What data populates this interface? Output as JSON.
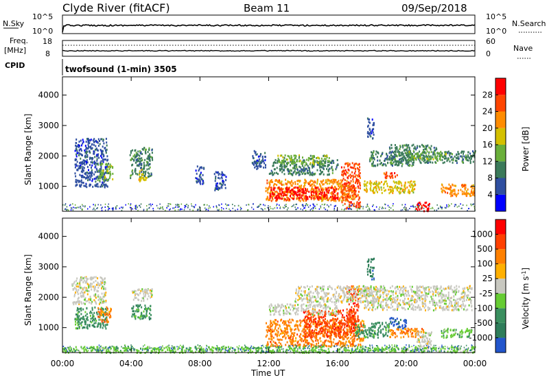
{
  "header": {
    "station": "Clyde River (fitACF)",
    "beam": "Beam 11",
    "date": "09/Sep/2018"
  },
  "noise_panel": {
    "left_label": "N.Sky",
    "left_ticks": [
      "10^5",
      "10^0"
    ],
    "right_ticks": [
      "10^5",
      "10^0"
    ],
    "right_label": "N.Search"
  },
  "freq_panel": {
    "left_label_1": "Freq.",
    "left_label_2": "[MHz]",
    "left_ticks": [
      "18",
      "8"
    ],
    "right_ticks": [
      "60",
      "0"
    ],
    "right_label": "Nave"
  },
  "cpid_panel": {
    "label": "CPID",
    "program": "twofsound (1-min) 3505"
  },
  "chart_data": [
    {
      "type": "heatmap",
      "name": "power",
      "ylabel": "Slant Range [km]",
      "ylim": [
        180,
        4600
      ],
      "yticks": [
        "4000",
        "3000",
        "2000",
        "1000"
      ],
      "xticks": [
        "00:00",
        "04:00",
        "08:00",
        "12:00",
        "16:00",
        "20:00",
        "00:00"
      ],
      "colorbar_label": "Power [dB]",
      "colorbar_ticks": [
        "28",
        "24",
        "20",
        "16",
        "12",
        "8",
        "4"
      ],
      "colors": [
        "#0000ff",
        "#2f4fa0",
        "#3b7a5a",
        "#6aaf3a",
        "#d4c000",
        "#ff8c00",
        "#ff4500",
        "#ff0000"
      ],
      "regions": [
        {
          "t": [
            0.7,
            2.6
          ],
          "r": [
            1000,
            2600
          ],
          "c": 1
        },
        {
          "t": [
            2.0,
            2.9
          ],
          "r": [
            1200,
            1800
          ],
          "c": 3
        },
        {
          "t": [
            3.9,
            5.2
          ],
          "r": [
            1300,
            2300
          ],
          "c": 2
        },
        {
          "t": [
            4.4,
            4.9
          ],
          "r": [
            1200,
            1600
          ],
          "c": 4
        },
        {
          "t": [
            7.7,
            8.2
          ],
          "r": [
            1100,
            1700
          ],
          "c": 1
        },
        {
          "t": [
            8.8,
            9.5
          ],
          "r": [
            900,
            1500
          ],
          "c": 1
        },
        {
          "t": [
            11.0,
            11.8
          ],
          "r": [
            1600,
            2200
          ],
          "c": 1
        },
        {
          "t": [
            11.8,
            17.0
          ],
          "r": [
            550,
            1250
          ],
          "c": 5
        },
        {
          "t": [
            12.0,
            16.0
          ],
          "r": [
            600,
            1000
          ],
          "c": 7
        },
        {
          "t": [
            16.2,
            17.3
          ],
          "r": [
            300,
            1800
          ],
          "c": 6
        },
        {
          "t": [
            12.0,
            16.0
          ],
          "r": [
            1400,
            1900
          ],
          "c": 2
        },
        {
          "t": [
            12.5,
            15.5
          ],
          "r": [
            1750,
            2050
          ],
          "c": 3
        },
        {
          "t": [
            17.8,
            20.5
          ],
          "r": [
            1700,
            2200
          ],
          "c": 2
        },
        {
          "t": [
            17.5,
            20.5
          ],
          "r": [
            800,
            1200
          ],
          "c": 4
        },
        {
          "t": [
            18.5,
            19.5
          ],
          "r": [
            1300,
            1500
          ],
          "c": 6
        },
        {
          "t": [
            19.0,
            21.8
          ],
          "r": [
            1800,
            2400
          ],
          "c": 2
        },
        {
          "t": [
            20.0,
            22.3
          ],
          "r": [
            1900,
            2200
          ],
          "c": 3
        },
        {
          "t": [
            22.0,
            24.0
          ],
          "r": [
            700,
            1100
          ],
          "c": 5
        },
        {
          "t": [
            22.0,
            24.0
          ],
          "r": [
            1800,
            2200
          ],
          "c": 2
        },
        {
          "t": [
            20.5,
            21.4
          ],
          "r": [
            200,
            500
          ],
          "c": 7
        },
        {
          "t": [
            17.7,
            18.1
          ],
          "r": [
            2600,
            3300
          ],
          "c": 1
        }
      ]
    },
    {
      "type": "heatmap",
      "name": "velocity",
      "ylabel": "Slant Range [km]",
      "ylim": [
        180,
        4600
      ],
      "yticks": [
        "4000",
        "3000",
        "2000",
        "1000"
      ],
      "xticks": [
        "00:00",
        "04:00",
        "08:00",
        "12:00",
        "16:00",
        "20:00",
        "00:00"
      ],
      "xlabel": "Time UT",
      "colorbar_label": "Velocity [m s-1]",
      "colorbar_ticks": [
        "1000",
        "500",
        "100",
        "25",
        "-25",
        "-100",
        "-500",
        "-1000"
      ],
      "colors": [
        "#2255cc",
        "#2e7d5a",
        "#3a8f5f",
        "#66cc33",
        "#c8c8c0",
        "#ffb000",
        "#ff8000",
        "#ff4000",
        "#ff0000"
      ],
      "regions": [
        {
          "t": [
            0.5,
            2.5
          ],
          "r": [
            1800,
            2700
          ],
          "c": 4
        },
        {
          "t": [
            0.7,
            2.6
          ],
          "r": [
            1000,
            1700
          ],
          "c": 2
        },
        {
          "t": [
            2.0,
            2.8
          ],
          "r": [
            1200,
            1700
          ],
          "c": 6
        },
        {
          "t": [
            4.0,
            5.2
          ],
          "r": [
            1300,
            1800
          ],
          "c": 2
        },
        {
          "t": [
            4.0,
            5.2
          ],
          "r": [
            1900,
            2300
          ],
          "c": 4
        },
        {
          "t": [
            11.8,
            17.5
          ],
          "r": [
            400,
            1300
          ],
          "c": 6
        },
        {
          "t": [
            14.0,
            17.0
          ],
          "r": [
            700,
            1600
          ],
          "c": 7
        },
        {
          "t": [
            16.5,
            17.2
          ],
          "r": [
            1200,
            2400
          ],
          "c": 7
        },
        {
          "t": [
            12.0,
            16.0
          ],
          "r": [
            1450,
            1800
          ],
          "c": 4
        },
        {
          "t": [
            13.5,
            18.5
          ],
          "r": [
            1850,
            2400
          ],
          "c": 4
        },
        {
          "t": [
            17.5,
            23.8
          ],
          "r": [
            1600,
            2400
          ],
          "c": 4
        },
        {
          "t": [
            19.0,
            20.0
          ],
          "r": [
            1000,
            1350
          ],
          "c": 0
        },
        {
          "t": [
            17.0,
            19.0
          ],
          "r": [
            700,
            1200
          ],
          "c": 2
        },
        {
          "t": [
            19.0,
            21.0
          ],
          "r": [
            700,
            1000
          ],
          "c": 6
        },
        {
          "t": [
            20.5,
            21.5
          ],
          "r": [
            250,
            900
          ],
          "c": 4
        },
        {
          "t": [
            22.0,
            23.8
          ],
          "r": [
            700,
            1000
          ],
          "c": 3
        },
        {
          "t": [
            0.0,
            24.0
          ],
          "r": [
            200,
            400
          ],
          "c": 3
        },
        {
          "t": [
            17.7,
            18.1
          ],
          "r": [
            2600,
            3300
          ],
          "c": 1
        }
      ]
    }
  ]
}
